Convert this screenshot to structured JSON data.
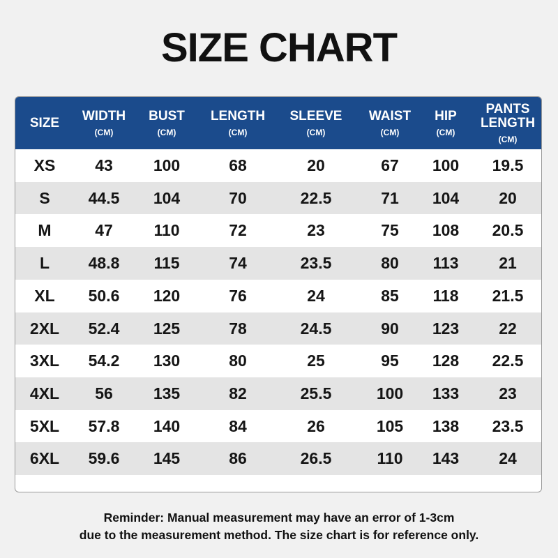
{
  "title": "SIZE CHART",
  "table": {
    "columns": [
      {
        "name": "SIZE"
      },
      {
        "name": "WIDTH",
        "unit": "(CM)"
      },
      {
        "name": "BUST",
        "unit": "(CM)"
      },
      {
        "name": "LENGTH",
        "unit": "(CM)"
      },
      {
        "name": "SLEEVE",
        "unit": "(CM)"
      },
      {
        "name": "WAIST",
        "unit": "(CM)"
      },
      {
        "name": "HIP",
        "unit": "(CM)"
      },
      {
        "name": "PANTS LENGTH",
        "unit": "(CM)"
      }
    ],
    "rows": [
      [
        "XS",
        43,
        100,
        68,
        20,
        67,
        100,
        19.5
      ],
      [
        "S",
        44.5,
        104,
        70,
        22.5,
        71,
        104,
        20
      ],
      [
        "M",
        47,
        110,
        72,
        23,
        75,
        108,
        20.5
      ],
      [
        "L",
        48.8,
        115,
        74,
        23.5,
        80,
        113,
        21
      ],
      [
        "XL",
        50.6,
        120,
        76,
        24,
        85,
        118,
        21.5
      ],
      [
        "2XL",
        52.4,
        125,
        78,
        24.5,
        90,
        123,
        22
      ],
      [
        "3XL",
        54.2,
        130,
        80,
        25,
        95,
        128,
        22.5
      ],
      [
        "4XL",
        56,
        135,
        82,
        25.5,
        100,
        133,
        23
      ],
      [
        "5XL",
        57.8,
        140,
        84,
        26,
        105,
        138,
        23.5
      ],
      [
        "6XL",
        59.6,
        145,
        86,
        26.5,
        110,
        143,
        24
      ]
    ]
  },
  "reminder": [
    "Reminder: Manual measurement may have an error of 1-3cm",
    "due to the measurement method. The size chart is for reference only."
  ]
}
